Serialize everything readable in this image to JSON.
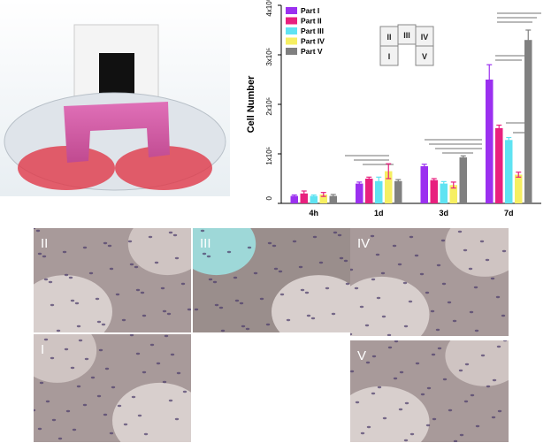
{
  "chart_data": {
    "type": "bar",
    "y_label": "Cell Number",
    "categories": [
      "4h",
      "1d",
      "3d",
      "7d"
    ],
    "series": [
      {
        "name": "Part I",
        "color": "#9b30f0",
        "values": [
          15000,
          40000,
          75000,
          250000
        ],
        "errors": [
          2000,
          3000,
          4000,
          30000
        ]
      },
      {
        "name": "Part II",
        "color": "#e8207e",
        "values": [
          20000,
          50000,
          47000,
          152000
        ],
        "errors": [
          5000,
          3000,
          3000,
          6000
        ]
      },
      {
        "name": "Part III",
        "color": "#5fe3f2",
        "values": [
          15000,
          45000,
          40000,
          128000
        ],
        "errors": [
          2000,
          8000,
          4000,
          5000
        ]
      },
      {
        "name": "Part IV",
        "color": "#f6ef62",
        "values": [
          18000,
          65000,
          37000,
          58000
        ],
        "errors": [
          4000,
          15000,
          6000,
          5000
        ]
      },
      {
        "name": "Part V",
        "color": "#808080",
        "values": [
          15000,
          45000,
          93000,
          330000
        ],
        "errors": [
          3000,
          3000,
          3000,
          20000
        ]
      }
    ],
    "ylim": [
      0,
      400000
    ],
    "yticks": [
      0,
      {
        "value": 100000,
        "label": "1x10⁵"
      },
      {
        "value": 200000,
        "label": "2x10⁵"
      },
      {
        "value": 300000,
        "label": "3x10⁵"
      },
      {
        "value": 400000,
        "label": "4x10⁵"
      }
    ],
    "inset_labels": [
      "II",
      "III",
      "IV",
      "I",
      "V"
    ]
  },
  "micrographs": [
    {
      "label": "II"
    },
    {
      "label": "III"
    },
    {
      "label": "IV"
    },
    {
      "label": "I"
    },
    {
      "label": "V"
    }
  ]
}
